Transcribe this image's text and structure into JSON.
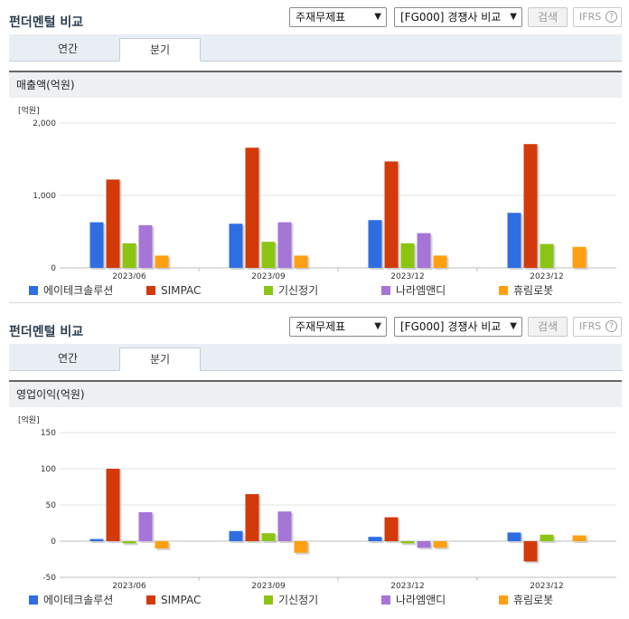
{
  "panels": [
    {
      "title": "펀더멘털 비교",
      "select1": "주재무제표",
      "select2": "[FG000] 경쟁사 비교",
      "search_label": "검색",
      "ifrs_label": "IFRS",
      "ifrs_help": "?",
      "tabs": [
        "연간",
        "분기"
      ],
      "subhead": "매출액(억원)",
      "chart_data": {
        "type": "bar",
        "unit_label": "[억원]",
        "categories": [
          "2023/06",
          "2023/09",
          "2023/12",
          "2023/12"
        ],
        "series": [
          {
            "name": "에이테크솔루션",
            "color": "#2f6ee0",
            "values": [
              630,
              610,
              660,
              760
            ]
          },
          {
            "name": "SIMPAC",
            "color": "#d23a0a",
            "values": [
              1220,
              1660,
              1470,
              1710
            ]
          },
          {
            "name": "기신정기",
            "color": "#8cc414",
            "values": [
              340,
              360,
              340,
              330
            ]
          },
          {
            "name": "나라엠앤디",
            "color": "#a575d8",
            "values": [
              590,
              630,
              480,
              null
            ]
          },
          {
            "name": "휴림로봇",
            "color": "#ffa012",
            "values": [
              170,
              170,
              170,
              290
            ]
          }
        ],
        "ylim": [
          0,
          2000
        ],
        "yticks": [
          0,
          1000,
          2000
        ],
        "ytick_labels": [
          "0",
          "1,000",
          "2,000"
        ],
        "grid": true,
        "legend": "bottom"
      }
    },
    {
      "title": "펀더멘털 비교",
      "select1": "주재무제표",
      "select2": "[FG000] 경쟁사 비교",
      "search_label": "검색",
      "ifrs_label": "IFRS",
      "ifrs_help": "?",
      "tabs": [
        "연간",
        "분기"
      ],
      "subhead": "영업이익(억원)",
      "chart_data": {
        "type": "bar",
        "unit_label": "[억원]",
        "categories": [
          "2023/06",
          "2023/09",
          "2023/12",
          "2023/12"
        ],
        "series": [
          {
            "name": "에이테크솔루션",
            "color": "#2f6ee0",
            "values": [
              3,
              14,
              6,
              12
            ]
          },
          {
            "name": "SIMPAC",
            "color": "#d23a0a",
            "values": [
              100,
              65,
              33,
              -28
            ]
          },
          {
            "name": "기신정기",
            "color": "#8cc414",
            "values": [
              -3,
              11,
              -3,
              9
            ]
          },
          {
            "name": "나라엠앤디",
            "color": "#a575d8",
            "values": [
              40,
              41,
              -9,
              null
            ]
          },
          {
            "name": "휴림로봇",
            "color": "#ffa012",
            "values": [
              -10,
              -16,
              -9,
              8
            ]
          }
        ],
        "ylim": [
          -50,
          150
        ],
        "yticks": [
          -50,
          0,
          50,
          100,
          150
        ],
        "ytick_labels": [
          "-50",
          "0",
          "50",
          "100",
          "150"
        ],
        "grid": true,
        "legend": "bottom"
      }
    }
  ]
}
